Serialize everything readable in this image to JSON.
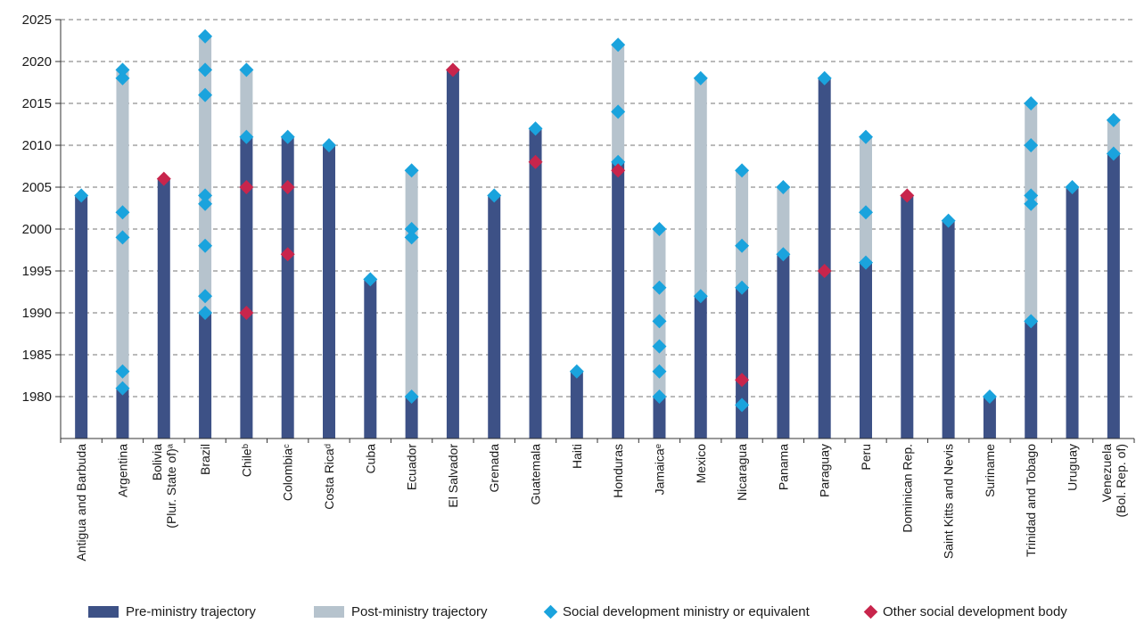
{
  "chart_data": {
    "type": "bar",
    "title": "",
    "xlabel": "",
    "ylabel": "",
    "ylim": [
      1975,
      2025
    ],
    "yticks": [
      1980,
      1985,
      1990,
      1995,
      2000,
      2005,
      2010,
      2015,
      2020,
      2025
    ],
    "grid": true,
    "legend_position": "bottom",
    "colors": {
      "pre": "#3d5186",
      "post": "#b6c3cd",
      "ministry": "#1aa3dd",
      "other": "#c8254c"
    },
    "categories": [
      {
        "label": "Antigua and Barbuda",
        "pre": [
          1975,
          2004
        ],
        "post": null,
        "ministry": [
          2004
        ],
        "other": []
      },
      {
        "label": "Argentina",
        "pre": [
          1975,
          1981
        ],
        "post": [
          1981,
          2019
        ],
        "ministry": [
          1981,
          1983,
          1999,
          2002,
          2018,
          2019
        ],
        "other": []
      },
      {
        "label": "Bolivia (Plur. State of)ᵃ",
        "pre": [
          1975,
          2006
        ],
        "post": null,
        "ministry": [],
        "other": [
          2006
        ]
      },
      {
        "label": "Brazil",
        "pre": [
          1975,
          1990
        ],
        "post": [
          1990,
          2023
        ],
        "ministry": [
          1990,
          1992,
          1998,
          2003,
          2004,
          2016,
          2019,
          2023
        ],
        "other": []
      },
      {
        "label": "Chileᵇ",
        "pre": [
          1975,
          2011
        ],
        "post": [
          2011,
          2019
        ],
        "ministry": [
          2011,
          2019
        ],
        "other": [
          1990,
          2005
        ]
      },
      {
        "label": "Colombiaᶜ",
        "pre": [
          1975,
          2011
        ],
        "post": null,
        "ministry": [
          2011
        ],
        "other": [
          1997,
          2005
        ]
      },
      {
        "label": "Costa Ricaᵈ",
        "pre": [
          1975,
          2010
        ],
        "post": null,
        "ministry": [
          2010
        ],
        "other": []
      },
      {
        "label": "Cuba",
        "pre": [
          1975,
          1994
        ],
        "post": null,
        "ministry": [
          1994
        ],
        "other": []
      },
      {
        "label": "Ecuador",
        "pre": [
          1975,
          1980
        ],
        "post": [
          1980,
          2007
        ],
        "ministry": [
          1980,
          1999,
          2000,
          2007
        ],
        "other": []
      },
      {
        "label": "El Salvador",
        "pre": [
          1975,
          2019
        ],
        "post": null,
        "ministry": [],
        "other": [
          2019
        ]
      },
      {
        "label": "Grenada",
        "pre": [
          1975,
          2004
        ],
        "post": null,
        "ministry": [
          2004
        ],
        "other": []
      },
      {
        "label": "Guatemala",
        "pre": [
          1975,
          2012
        ],
        "post": null,
        "ministry": [
          2012
        ],
        "other": [
          2008
        ]
      },
      {
        "label": "Haiti",
        "pre": [
          1975,
          1983
        ],
        "post": null,
        "ministry": [
          1983
        ],
        "other": []
      },
      {
        "label": "Honduras",
        "pre": [
          1975,
          2008
        ],
        "post": [
          2008,
          2022
        ],
        "ministry": [
          2008,
          2014,
          2022
        ],
        "other": [
          2007
        ]
      },
      {
        "label": "Jamaicaᵉ",
        "pre": [
          1975,
          1980
        ],
        "post": [
          1980,
          2000
        ],
        "ministry": [
          1980,
          1983,
          1986,
          1989,
          1993,
          2000
        ],
        "other": []
      },
      {
        "label": "Mexico",
        "pre": [
          1975,
          1992
        ],
        "post": [
          1992,
          2018
        ],
        "ministry": [
          1992,
          2018
        ],
        "other": []
      },
      {
        "label": "Nicaragua",
        "pre": [
          1975,
          1993
        ],
        "post": [
          1993,
          2007
        ],
        "ministry": [
          1979,
          1993,
          1998,
          2007
        ],
        "other": [
          1982
        ]
      },
      {
        "label": "Panama",
        "pre": [
          1975,
          1997
        ],
        "post": [
          1997,
          2005
        ],
        "ministry": [
          1997,
          2005
        ],
        "other": []
      },
      {
        "label": "Paraguay",
        "pre": [
          1975,
          2018
        ],
        "post": null,
        "ministry": [
          2018
        ],
        "other": [
          1995
        ]
      },
      {
        "label": "Peru",
        "pre": [
          1975,
          1996
        ],
        "post": [
          1996,
          2011
        ],
        "ministry": [
          1996,
          2002,
          2011
        ],
        "other": []
      },
      {
        "label": "Dominican Rep.",
        "pre": [
          1975,
          2004
        ],
        "post": null,
        "ministry": [],
        "other": [
          2004
        ]
      },
      {
        "label": "Saint Kitts and Nevis",
        "pre": [
          1975,
          2001
        ],
        "post": null,
        "ministry": [
          2001
        ],
        "other": []
      },
      {
        "label": "Suriname",
        "pre": [
          1975,
          1980
        ],
        "post": null,
        "ministry": [
          1980
        ],
        "other": []
      },
      {
        "label": "Trinidad and Tobago",
        "pre": [
          1975,
          1989
        ],
        "post": [
          1989,
          2015
        ],
        "ministry": [
          1989,
          2003,
          2004,
          2010,
          2015
        ],
        "other": []
      },
      {
        "label": "Uruguay",
        "pre": [
          1975,
          2005
        ],
        "post": null,
        "ministry": [
          2005
        ],
        "other": []
      },
      {
        "label": "Venezuela (Bol. Rep. of)",
        "pre": [
          1975,
          2009
        ],
        "post": [
          2009,
          2013
        ],
        "ministry": [
          2009,
          2013
        ],
        "other": []
      }
    ],
    "legend": {
      "pre": "Pre-ministry trajectory",
      "post": "Post-ministry trajectory",
      "ministry": "Social development ministry or equivalent",
      "other": "Other social development body"
    }
  }
}
